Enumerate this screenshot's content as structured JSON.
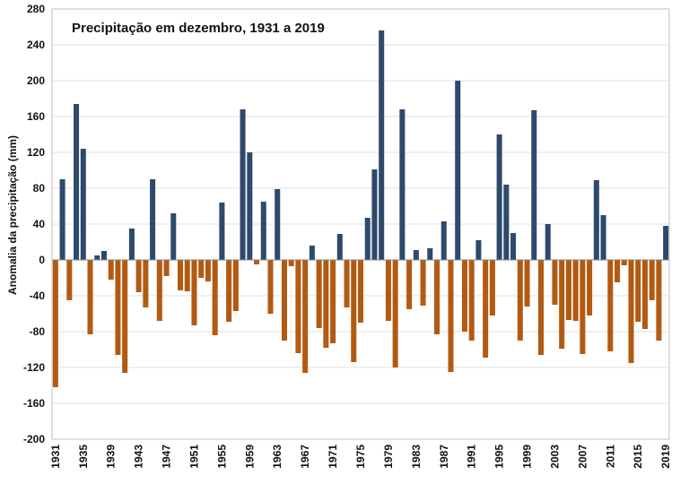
{
  "chart_data": {
    "type": "bar",
    "title": "Precipitação em dezembro, 1931 a 2019",
    "xlabel": "",
    "ylabel": "Anomalia da precipitação (mm)",
    "ylim": [
      -200,
      280
    ],
    "yticks": [
      280,
      240,
      200,
      160,
      120,
      80,
      40,
      0,
      -40,
      -80,
      -120,
      -160,
      -200
    ],
    "xtick_labels": [
      "1931",
      "1935",
      "1939",
      "1943",
      "1947",
      "1951",
      "1955",
      "1959",
      "1963",
      "1967",
      "1971",
      "1975",
      "1979",
      "1983",
      "1987",
      "1991",
      "1995",
      "1999",
      "2003",
      "2007",
      "2011",
      "2015",
      "2019"
    ],
    "positive_color": "#2e4a6b",
    "negative_color": "#b35a12",
    "grid_color": "#e2e2e2",
    "categories": [
      1931,
      1932,
      1933,
      1934,
      1935,
      1936,
      1937,
      1938,
      1939,
      1940,
      1941,
      1942,
      1943,
      1944,
      1945,
      1946,
      1947,
      1948,
      1949,
      1950,
      1951,
      1952,
      1953,
      1954,
      1955,
      1956,
      1957,
      1958,
      1959,
      1960,
      1961,
      1962,
      1963,
      1964,
      1965,
      1966,
      1967,
      1968,
      1969,
      1970,
      1971,
      1972,
      1973,
      1974,
      1975,
      1976,
      1977,
      1978,
      1979,
      1980,
      1981,
      1982,
      1983,
      1984,
      1985,
      1986,
      1987,
      1988,
      1989,
      1990,
      1991,
      1992,
      1993,
      1994,
      1995,
      1996,
      1997,
      1998,
      1999,
      2000,
      2001,
      2002,
      2003,
      2004,
      2005,
      2006,
      2007,
      2008,
      2009,
      2010,
      2011,
      2012,
      2013,
      2014,
      2015,
      2016,
      2017,
      2018,
      2019
    ],
    "values": [
      -142,
      90,
      -45,
      174,
      124,
      -83,
      5,
      10,
      -22,
      -106,
      -126,
      35,
      -36,
      -53,
      90,
      -68,
      -18,
      52,
      -34,
      -35,
      -73,
      -20,
      -24,
      -84,
      64,
      -69,
      -57,
      168,
      120,
      -5,
      65,
      -60,
      79,
      -90,
      -7,
      -104,
      -126,
      16,
      -76,
      -98,
      -93,
      29,
      -53,
      -114,
      -70,
      47,
      101,
      256,
      -68,
      -120,
      168,
      -55,
      11,
      -51,
      13,
      -83,
      43,
      -125,
      200,
      -80,
      -90,
      22,
      -109,
      -62,
      140,
      84,
      30,
      -90,
      -52,
      167,
      -106,
      40,
      -50,
      -99,
      -67,
      -68,
      -105,
      -62,
      89,
      50,
      -102,
      -25,
      -6,
      -115,
      -69,
      -77,
      -45,
      -90,
      38
    ]
  }
}
